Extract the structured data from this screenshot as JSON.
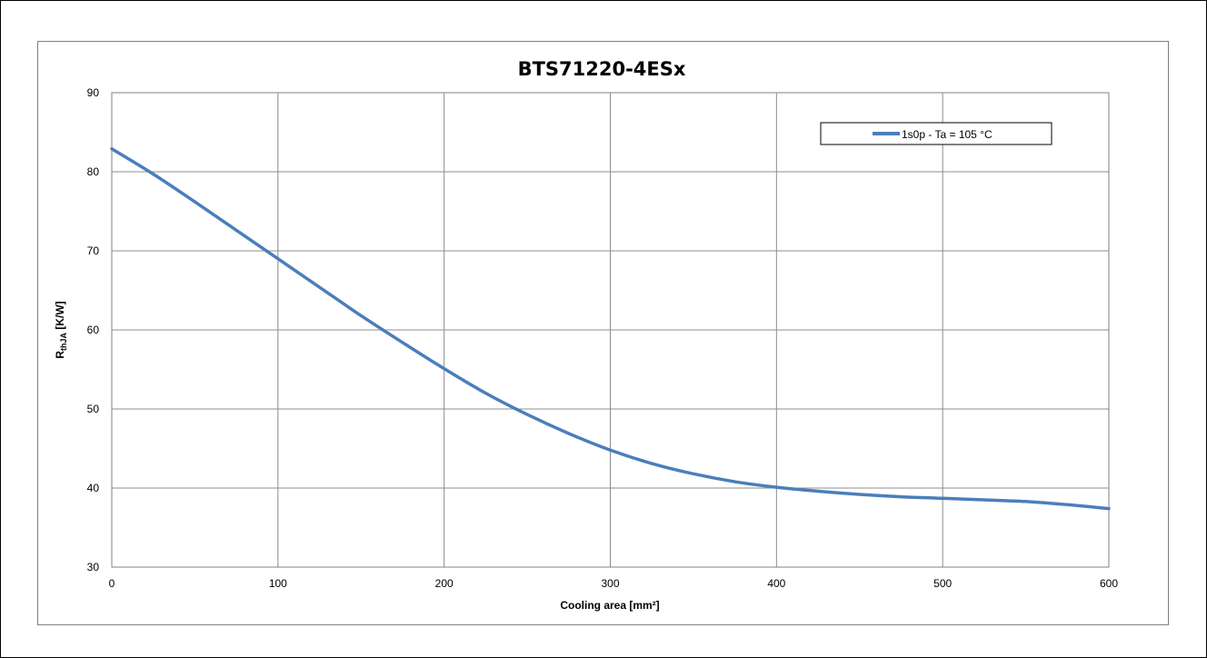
{
  "chart_data": {
    "type": "line",
    "title": "BTS71220-4ESx",
    "xlabel": "Cooling area [mm²]",
    "ylabel": {
      "main": "R",
      "sub": "thJA",
      "unit": " [K/W]"
    },
    "xlim": [
      0,
      600
    ],
    "ylim": [
      30,
      90
    ],
    "x_ticks": [
      0,
      100,
      200,
      300,
      400,
      500,
      600
    ],
    "y_ticks": [
      30,
      40,
      50,
      60,
      70,
      80,
      90
    ],
    "grid": true,
    "legend_position": "top-right",
    "series": [
      {
        "name": "1s0p - Ta = 105 °C",
        "color": "#4a7ebb",
        "x": [
          0,
          25,
          50,
          75,
          100,
          125,
          150,
          175,
          200,
          225,
          250,
          275,
          300,
          325,
          350,
          375,
          400,
          425,
          450,
          475,
          500,
          525,
          550,
          575,
          600
        ],
        "y": [
          82.9,
          79.7,
          76.2,
          72.6,
          69.0,
          65.4,
          61.8,
          58.4,
          55.1,
          52.0,
          49.3,
          46.9,
          44.8,
          43.1,
          41.8,
          40.8,
          40.1,
          39.6,
          39.2,
          38.9,
          38.7,
          38.5,
          38.3,
          37.9,
          37.4
        ]
      }
    ]
  }
}
